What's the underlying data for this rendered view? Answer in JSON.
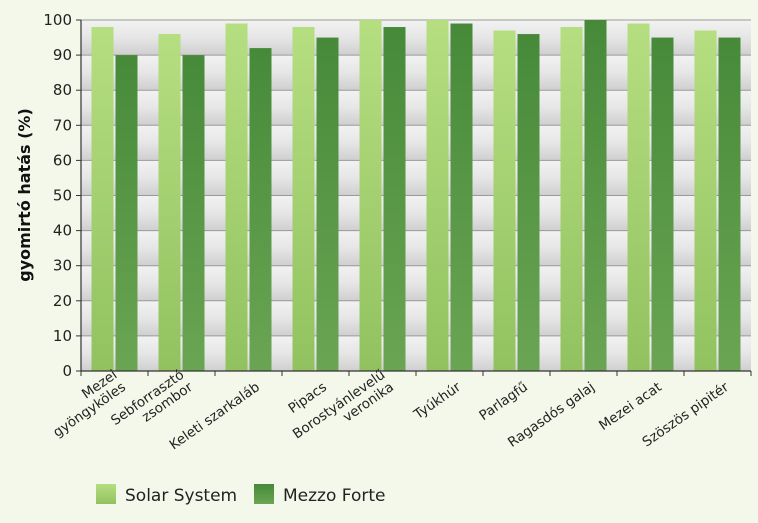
{
  "chart_data": {
    "type": "bar",
    "ylabel": "gyomirtó hatás (%)",
    "ylim": [
      0,
      100
    ],
    "yticks": [
      0,
      10,
      20,
      30,
      40,
      50,
      60,
      70,
      80,
      90,
      100
    ],
    "grid": true,
    "legend_position": "bottom-left",
    "categories": [
      [
        "Mezei",
        "gyöngyköles"
      ],
      [
        "Sebforrasztó",
        "zsombor"
      ],
      [
        "Keleti szarkaláb"
      ],
      [
        "Pipacs"
      ],
      [
        "Borostyánlevelű",
        "veronika"
      ],
      [
        "Tyúkhúr"
      ],
      [
        "Parlagfű"
      ],
      [
        "Ragasdós galaj"
      ],
      [
        "Mezei acat"
      ],
      [
        "Szöszös pipitér"
      ]
    ],
    "series": [
      {
        "name": "Solar System",
        "color": "#a8d574",
        "values": [
          98,
          96,
          99,
          98,
          100,
          100,
          97,
          98,
          99,
          97
        ]
      },
      {
        "name": "Mezzo Forte",
        "color": "#4f8f3f",
        "values": [
          90,
          90,
          92,
          95,
          98,
          99,
          96,
          100,
          95,
          95
        ]
      }
    ]
  }
}
